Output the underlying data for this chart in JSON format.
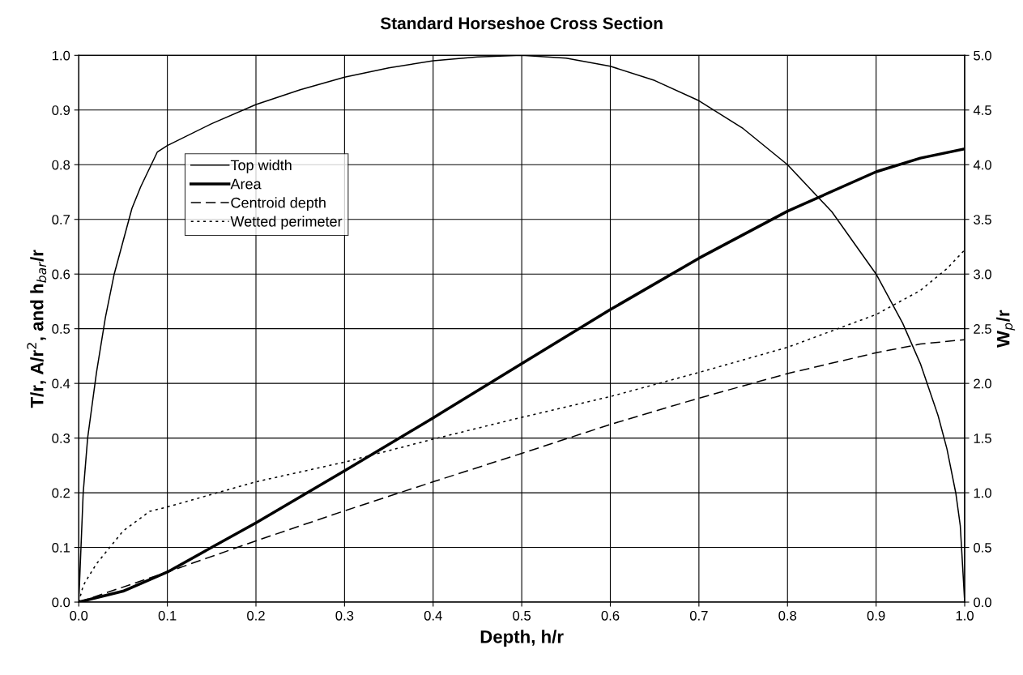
{
  "chart_data": {
    "type": "line",
    "title": "Standard Horseshoe Cross Section",
    "xlabel": "Depth, h/r",
    "ylabel": "T/r, A/r$^{2}$, and h$_{bar}$/r",
    "y2label": "W$_{p}$/r",
    "xlim": [
      0,
      1
    ],
    "xticks": [
      {
        "value": 0,
        "label": "0.0"
      },
      0.1,
      0.2,
      0.3,
      0.4,
      0.5,
      0.6,
      0.7,
      0.8,
      0.9,
      {
        "value": 1,
        "label": "1.0"
      }
    ],
    "ylim": [
      0,
      1
    ],
    "yticks": [
      {
        "value": 0,
        "label": "0.0"
      },
      0.1,
      0.2,
      0.3,
      0.4,
      0.5,
      0.6,
      0.7,
      0.8,
      0.9,
      {
        "value": 1,
        "label": "1.0"
      }
    ],
    "y2lim": [
      0,
      5
    ],
    "y2ticks": [
      {
        "value": 0,
        "label": "0.0"
      },
      0.5,
      {
        "value": 1,
        "label": "1.0"
      },
      1.5,
      {
        "value": 2,
        "label": "2.0"
      },
      2.5,
      {
        "value": 3,
        "label": "3.0"
      },
      3.5,
      {
        "value": 4,
        "label": "4.0"
      },
      4.5,
      {
        "value": 5,
        "label": "5.0"
      }
    ],
    "grid": true,
    "legend": "top left",
    "marker": "none",
    "series": [
      {
        "name": "Top width",
        "color": "#000000",
        "line_style": "solid",
        "x": [
          0,
          0.005,
          0.01,
          0.02,
          0.03,
          0.04,
          0.05,
          0.06,
          0.07,
          0.0886,
          0.1,
          0.15,
          0.2,
          0.25,
          0.3,
          0.35,
          0.4,
          0.45,
          0.5,
          0.55,
          0.6,
          0.65,
          0.7,
          0.75,
          0.8,
          0.85,
          0.9,
          0.93,
          0.95,
          0.97,
          0.98,
          0.99,
          0.995,
          1.0
        ],
        "values": [
          0,
          0.2,
          0.3,
          0.42,
          0.52,
          0.6,
          0.66,
          0.72,
          0.76,
          0.823,
          0.835,
          0.875,
          0.91,
          0.937,
          0.96,
          0.977,
          0.99,
          0.997,
          1.0,
          0.995,
          0.98,
          0.954,
          0.917,
          0.866,
          0.8,
          0.714,
          0.6,
          0.51,
          0.436,
          0.341,
          0.28,
          0.199,
          0.14,
          0
        ]
      },
      {
        "name": "Area",
        "color": "#000000",
        "line_style": "solid",
        "x": [
          0,
          0.05,
          0.1,
          0.15,
          0.2,
          0.3,
          0.4,
          0.5,
          0.6,
          0.7,
          0.8,
          0.9,
          0.95,
          1.0
        ],
        "values": [
          0,
          0.02,
          0.055,
          0.1,
          0.145,
          0.24,
          0.337,
          0.436,
          0.535,
          0.629,
          0.715,
          0.787,
          0.812,
          0.829
        ]
      },
      {
        "name": "Centroid depth",
        "color": "#000000",
        "line_style": "dashed",
        "x": [
          0,
          0.1,
          0.2,
          0.3,
          0.4,
          0.5,
          0.6,
          0.7,
          0.8,
          0.9,
          0.95,
          1.0
        ],
        "values": [
          0,
          0.055,
          0.112,
          0.167,
          0.22,
          0.272,
          0.325,
          0.373,
          0.418,
          0.456,
          0.472,
          0.48
        ]
      },
      {
        "name": "Wetted perimeter",
        "color": "#000000",
        "line_style": "dotted",
        "axis": "y2",
        "x": [
          0,
          0.005,
          0.01,
          0.02,
          0.05,
          0.08,
          0.1,
          0.2,
          0.3,
          0.4,
          0.5,
          0.6,
          0.7,
          0.8,
          0.9,
          0.95,
          0.98,
          1.0
        ],
        "values": [
          0,
          0.15,
          0.22,
          0.35,
          0.65,
          0.83,
          0.87,
          1.1,
          1.28,
          1.49,
          1.69,
          1.88,
          2.1,
          2.33,
          2.63,
          2.85,
          3.05,
          3.22
        ]
      }
    ]
  }
}
